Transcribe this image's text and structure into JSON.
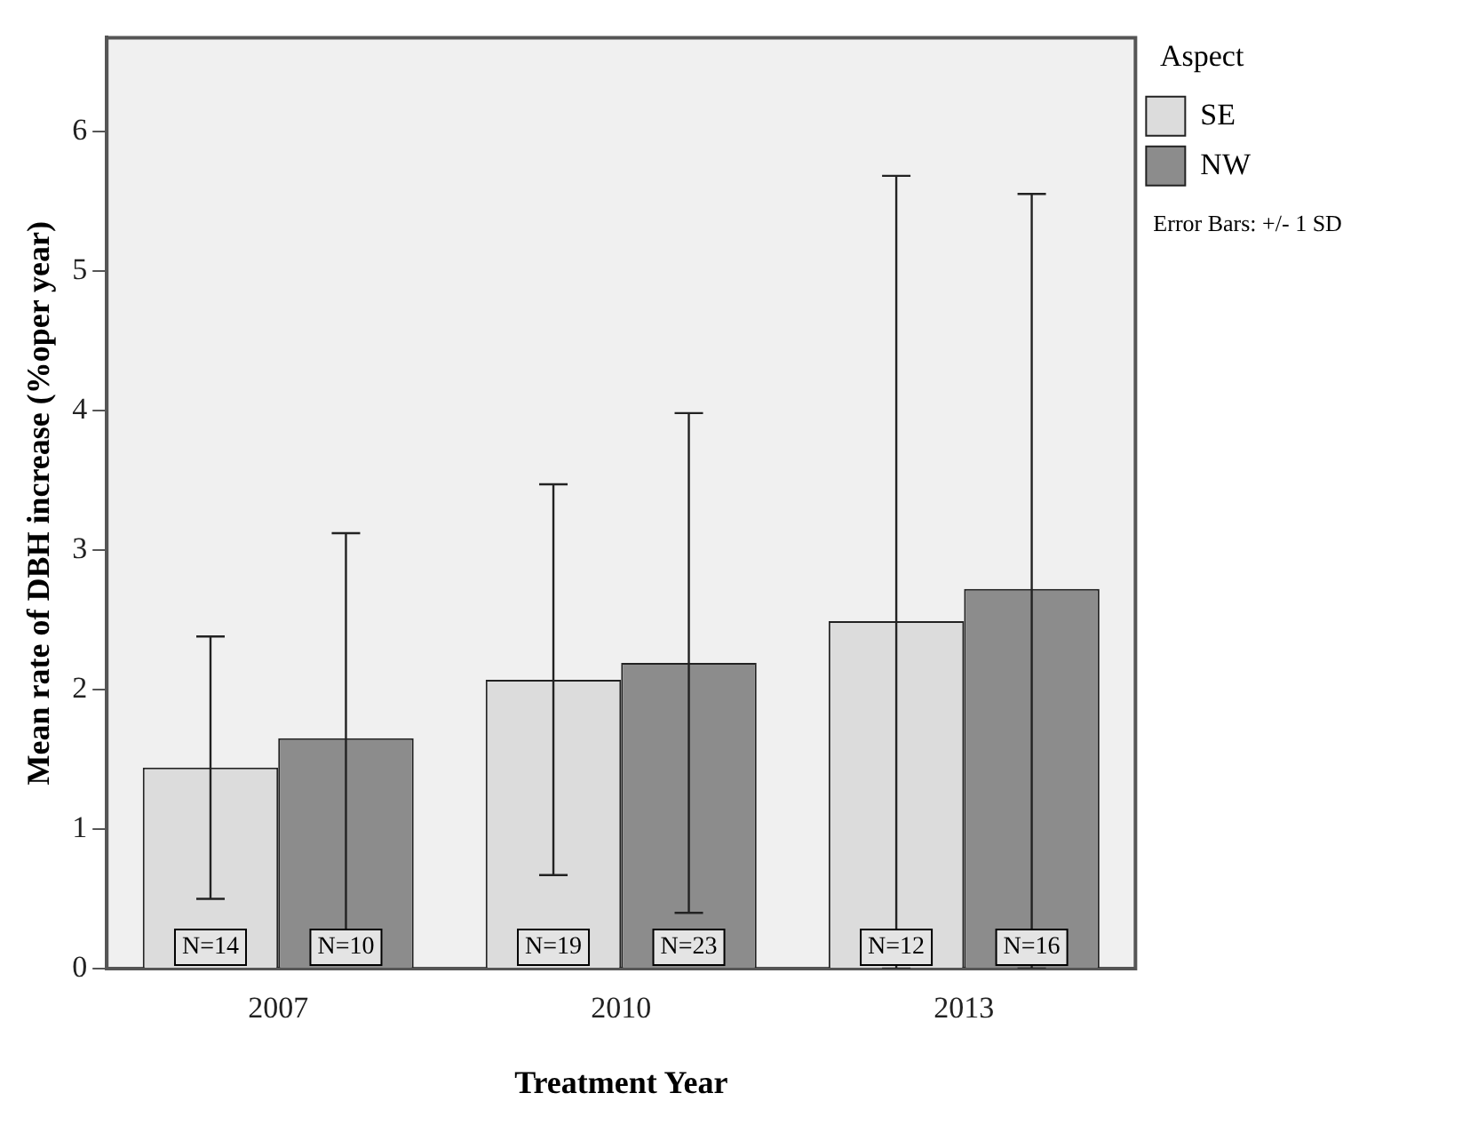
{
  "chart_data": {
    "type": "bar",
    "xlabel": "Treatment Year",
    "ylabel": "Mean rate of DBH increase (%oper year)",
    "legend_title": "Aspect",
    "categories": [
      "2007",
      "2010",
      "2013"
    ],
    "series": [
      {
        "name": "SE",
        "color": "#dcdcdc",
        "values": [
          1.44,
          2.07,
          2.49
        ],
        "errors": [
          0.94,
          1.4,
          [
            0,
            5.68
          ]
        ]
      },
      {
        "name": "NW",
        "color": "#8c8c8c",
        "values": [
          1.65,
          2.19,
          2.72
        ],
        "errors": [
          1.47,
          1.79,
          [
            0,
            5.55
          ]
        ]
      }
    ],
    "ylim": [
      0,
      6.67
    ],
    "yticks": [
      0,
      1,
      2,
      3,
      4,
      5,
      6
    ],
    "grid": false,
    "legend": "top right",
    "annotations": [
      "Error Bars: +/- 1 SD",
      {
        "text": "N=14",
        "x": "2007",
        "y": 0
      },
      {
        "text": "N=10",
        "x": "2007",
        "y": 0
      },
      {
        "text": "N=19",
        "x": "2010",
        "y": 0
      },
      {
        "text": "N=23",
        "x": "2010",
        "y": 0
      },
      {
        "text": "N=12",
        "x": "2013",
        "y": 0
      },
      {
        "text": "N=16",
        "x": "2013",
        "y": 0
      }
    ]
  }
}
